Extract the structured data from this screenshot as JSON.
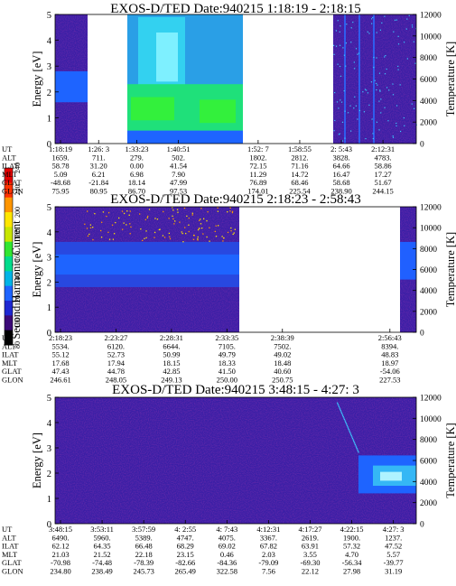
{
  "chart_data": [
    {
      "type": "heatmap",
      "title": "EXOS-D/TED   Date:940215   1:18:19 - 2:18:15",
      "ylabel": "Energy [eV]",
      "ylabel_right": "Temperature [K]",
      "ylim": [
        0,
        5
      ],
      "yticks": [
        "0",
        "1",
        "2",
        "3",
        "4",
        "5"
      ],
      "ylim_right": [
        0,
        12000
      ],
      "yticks_right": [
        "0",
        "2000",
        "4000",
        "6000",
        "8000",
        "10000",
        "12000"
      ],
      "gaps": [
        [
          0.09,
          0.2
        ],
        [
          0.52,
          0.77
        ]
      ],
      "orbit": {
        "labels": [
          "UT",
          "ALT",
          "ILAT",
          "MLT",
          "GLAT",
          "GLON"
        ],
        "columns": [
          [
            "1:18:19",
            "1659.",
            "58.78",
            "5.09",
            "-48.68",
            "75.95"
          ],
          [
            "1:26: 3",
            "711.",
            "31.20",
            "6.21",
            "-21.84",
            "80.95"
          ],
          [
            "1:33:23",
            "279.",
            "0.00",
            "6.98",
            "18.14",
            "86.70"
          ],
          [
            "1:40:51",
            "502.",
            "41.54",
            "7.90",
            "47.99",
            "97.53"
          ],
          [
            "1:52: 7",
            "1802.",
            "72.15",
            "11.29",
            "76.89",
            "174.01"
          ],
          [
            "1:58:55",
            "2812.",
            "71.16",
            "14.72",
            "68.46",
            "225.54"
          ],
          [
            "2: 5:43",
            "3828.",
            "64.66",
            "16.47",
            "58.68",
            "238.90"
          ],
          [
            "2:12:31",
            "4783.",
            "58.86",
            "17.27",
            "51.67",
            "244.15"
          ]
        ]
      }
    },
    {
      "type": "heatmap",
      "title": "EXOS-D/TED   Date:940215   2:18:23 - 2:58:43",
      "ylabel": "Energy [eV]",
      "ylabel_right": "Temperature [K]",
      "ylim": [
        0,
        5
      ],
      "yticks": [
        "0",
        "1",
        "2",
        "3",
        "4",
        "5"
      ],
      "ylim_right": [
        0,
        12000
      ],
      "yticks_right": [
        "0",
        "2000",
        "4000",
        "6000",
        "8000",
        "10000",
        "12000"
      ],
      "gaps": [
        [
          0.51,
          0.955
        ]
      ],
      "orbit": {
        "labels": [
          "UT",
          "ALT",
          "ILAT",
          "MLT",
          "GLAT",
          "GLON"
        ],
        "columns": [
          [
            "2:18:23",
            "5534.",
            "55.12",
            "17.68",
            "47.43",
            "246.61"
          ],
          [
            "2:23:27",
            "6120.",
            "52.73",
            "17.94",
            "44.78",
            "248.05"
          ],
          [
            "2:28:31",
            "6644.",
            "50.99",
            "18.15",
            "42.85",
            "249.13"
          ],
          [
            "2:33:35",
            "7105.",
            "49.79",
            "18.33",
            "41.50",
            "250.00"
          ],
          [
            "2:38:39",
            "7502.",
            "49.02",
            "18.48",
            "40.60",
            "250.75"
          ],
          [
            "2:56:43",
            "8394.",
            "48.83",
            "18.97",
            "-54.06",
            "227.53"
          ]
        ]
      }
    },
    {
      "type": "heatmap",
      "title": "EXOS-D/TED   Date:940215   3:48:15 - 4:27: 3",
      "ylabel": "Energy [eV]",
      "ylabel_right": "Temperature [K]",
      "ylim": [
        0,
        5
      ],
      "yticks": [
        "0",
        "1",
        "2",
        "3",
        "4",
        "5"
      ],
      "ylim_right": [
        0,
        12000
      ],
      "yticks_right": [
        "0",
        "2000",
        "4000",
        "6000",
        "8000",
        "10000",
        "12000"
      ],
      "gaps": [],
      "orbit": {
        "labels": [
          "UT",
          "ALT",
          "ILAT",
          "MLT",
          "GLAT",
          "GLON"
        ],
        "columns": [
          [
            "3:48:15",
            "6490.",
            "62.12",
            "21.03",
            "-70.98",
            "234.80"
          ],
          [
            "3:53:11",
            "5960.",
            "64.35",
            "21.52",
            "-74.48",
            "238.49"
          ],
          [
            "3:57:59",
            "5389.",
            "66.48",
            "22.18",
            "-78.39",
            "245.73"
          ],
          [
            "4: 2:55",
            "4747.",
            "68.29",
            "23.15",
            "-82.66",
            "265.49"
          ],
          [
            "4: 7:43",
            "4075.",
            "69.02",
            "0.46",
            "-84.36",
            "322.58"
          ],
          [
            "4:12:31",
            "3367.",
            "67.82",
            "2.03",
            "-79.09",
            "7.56"
          ],
          [
            "4:17:27",
            "2619.",
            "63.91",
            "3.55",
            "-69.30",
            "22.12"
          ],
          [
            "4:22:15",
            "1900.",
            "57.32",
            "4.70",
            "-56.34",
            "27.98"
          ],
          [
            "4:27: 3",
            "1237.",
            "47.52",
            "5.57",
            "-39.77",
            "31.19"
          ]
        ]
      }
    }
  ],
  "colorbar": {
    "label": "Second Harmonic Current",
    "ticks": [
      "80",
      "100",
      "120",
      "140",
      "160",
      "180",
      "200",
      "220",
      "240"
    ],
    "colors": [
      "#000000",
      "#3c0a78",
      "#1e28d2",
      "#1e64ff",
      "#00b4e6",
      "#00dc8c",
      "#32e632",
      "#c8e600",
      "#ffe600",
      "#ff9600",
      "#ff3200",
      "#e60000"
    ]
  }
}
